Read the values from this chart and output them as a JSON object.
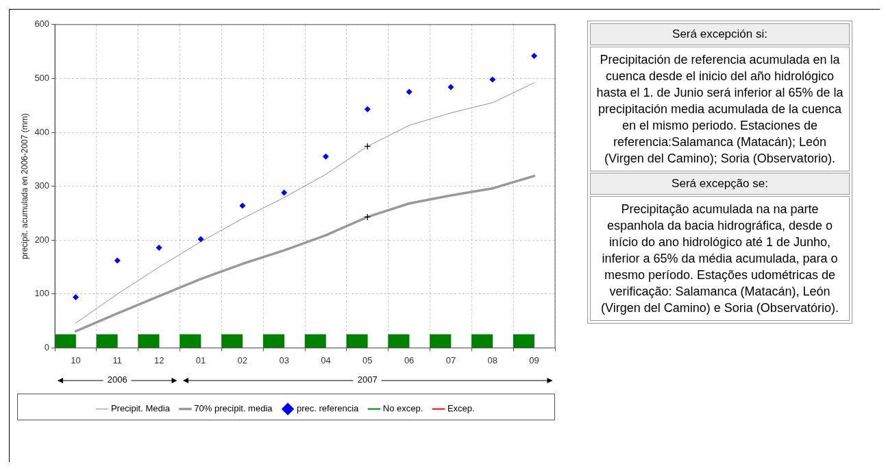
{
  "chart_data": [
    {
      "type": "line",
      "ylabel": "precipit. acumulada en 2006-2007 (mm)",
      "categories": [
        "10",
        "11",
        "12",
        "01",
        "02",
        "03",
        "04",
        "05",
        "06",
        "07",
        "08",
        "09"
      ],
      "ylim": [
        0,
        600
      ],
      "yticks": [
        0,
        100,
        200,
        300,
        400,
        500,
        600
      ],
      "grid": true,
      "legend": "bottom",
      "line_style": "solid",
      "annotations": [
        "2006",
        "2007"
      ],
      "series": [
        {
          "name": "Precipit. Media",
          "type": "line",
          "color": "#909090",
          "marker": "none",
          "values": [
            46,
            100,
            150,
            197,
            240,
            279,
            322,
            374,
            413,
            436,
            455,
            492
          ]
        },
        {
          "name": "70% precipit. media",
          "type": "line",
          "color": "#999999",
          "marker": "none",
          "values": [
            31,
            64,
            96,
            128,
            156,
            181,
            209,
            243,
            268,
            283,
            296,
            319
          ]
        },
        {
          "name": "prec. referencia",
          "type": "scatter",
          "color": "#0000ff",
          "marker": "diamond",
          "values": [
            94,
            162,
            186,
            202,
            264,
            288,
            355,
            443,
            475,
            484,
            498,
            542
          ]
        },
        {
          "type": "scatter",
          "color": "#000000",
          "marker": "cross",
          "x": [
            "05",
            "05"
          ],
          "values": [
            374,
            243
          ]
        },
        {
          "name": "No excep.",
          "type": "bar",
          "color": "#008000",
          "values": [
            25,
            25,
            25,
            25,
            25,
            25,
            25,
            25,
            25,
            25,
            25,
            25
          ]
        },
        {
          "name": "Excep.",
          "type": "bar",
          "color": "#ff0000",
          "values": [
            null,
            null,
            null,
            null,
            null,
            null,
            null,
            null,
            null,
            null,
            null,
            null
          ]
        }
      ]
    },
    {
      "type": "other",
      "annotations": [
        "Será excepción si:",
        "Precipitación de referencia acumulada en la cuenca desde el inicio del año hidrológico hasta el 1. de Junio será inferior al 65% de la precipitación media acumulada de la cuenca en el mismo periodo. Estaciones de referencia:Salamanca (Matacán); León (Virgen del Camino); Soria (Observatorio).",
        "Será excepção se:",
        "Precipitação acumulada na na parte espanhola da bacia hidrográfica, desde o início do ano hidrológico até 1 de Junho, inferior a 65% da média acumulada, para o mesmo período. Estações udométricas de verificação: Salamanca (Matacán), León (Virgen del Camino) e Soria (Observatório)."
      ]
    }
  ]
}
